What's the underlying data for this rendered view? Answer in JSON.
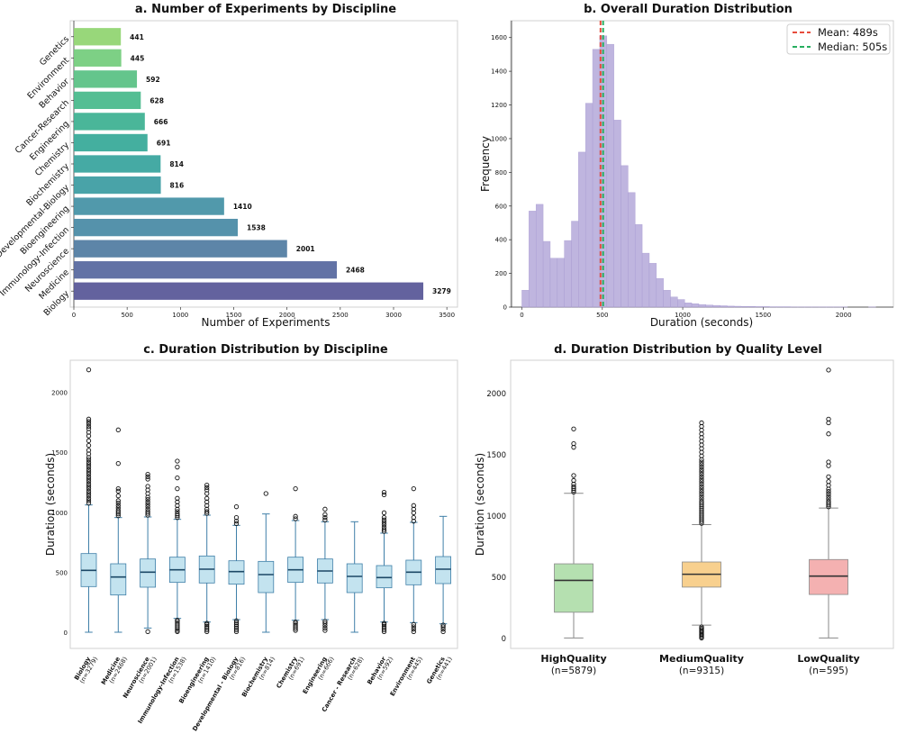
{
  "colors": {
    "hist": "#b9aedc",
    "hist_edge": "#a99cd2",
    "mean": "#e74c3c",
    "median": "#27ae60",
    "box_c": "#c3e3ef",
    "box_c_edge": "#3f7fa8",
    "box_c_median": "#1c4866",
    "high": "#b5e0b0",
    "medium": "#f8d08e",
    "low": "#f4b1b1",
    "box_d_edge": "#8a8a8a",
    "box_d_median": "#333333"
  },
  "chart_data": [
    {
      "id": "a",
      "type": "bar",
      "orientation": "horizontal",
      "title": "a. Number of Experiments by Discipline",
      "xlabel": "Number of Experiments",
      "ylabel": "",
      "xlim": [
        0,
        3600
      ],
      "xticks": [
        0,
        500,
        1000,
        1500,
        2000,
        2500,
        3000,
        3500
      ],
      "categories": [
        "Biology",
        "Medicine",
        "Neuroscience",
        "Immunology-Infection",
        "Bioengineering",
        "Developmental-Biology",
        "Biochemistry",
        "Chemistry",
        "Engineering",
        "Cancer-Research",
        "Behavior",
        "Environment",
        "Genetics"
      ],
      "values": [
        3279,
        2468,
        2001,
        1538,
        1410,
        816,
        814,
        691,
        666,
        628,
        592,
        445,
        441
      ],
      "colors": [
        "#5b5a99",
        "#5a6aa0",
        "#547ea3",
        "#4c8ca6",
        "#4894a6",
        "#3f9ea3",
        "#3ba59f",
        "#3aab9a",
        "#40b294",
        "#4bba8d",
        "#5cc286",
        "#76cd7e",
        "#92d573"
      ]
    },
    {
      "id": "b",
      "type": "histogram",
      "title": "b. Overall Duration Distribution",
      "xlabel": "Duration (seconds)",
      "ylabel": "Frequency",
      "xlim": [
        -70,
        2310
      ],
      "ylim": [
        0,
        1700
      ],
      "xticks": [
        0,
        500,
        1000,
        1500,
        2000
      ],
      "yticks": [
        0,
        200,
        400,
        600,
        800,
        1000,
        1200,
        1400,
        1600
      ],
      "bin_start": 0,
      "bin_width": 44,
      "counts": [
        100,
        570,
        610,
        390,
        290,
        290,
        395,
        510,
        920,
        1210,
        1530,
        1610,
        1560,
        1110,
        840,
        680,
        490,
        320,
        260,
        170,
        100,
        60,
        45,
        25,
        20,
        15,
        12,
        10,
        8,
        6,
        5,
        4,
        4,
        3,
        3,
        2,
        2,
        2,
        1,
        1,
        1,
        1,
        1,
        1,
        1,
        1,
        0,
        0,
        0,
        1
      ],
      "mean": 489,
      "median": 505,
      "legend": [
        "Mean: 489s",
        "Median: 505s"
      ],
      "legend_position": "top-right"
    },
    {
      "id": "c",
      "type": "box",
      "title": "c. Duration Distribution by Discipline",
      "xlabel": "",
      "ylabel": "Duration (seconds)",
      "ylim": [
        -130,
        2270
      ],
      "yticks": [
        0,
        500,
        1000,
        1500,
        2000
      ],
      "categories": [
        "Biology",
        "Medicine",
        "Neuroscience",
        "Immunology-Infection",
        "Bioengineering",
        "Developmental - Biology",
        "Biochemistry",
        "Chemistry",
        "Engineering",
        "Cancer - Research",
        "Behavior",
        "Environment",
        "Genetics"
      ],
      "n_labels": [
        "(n=3279)",
        "(n=2468)",
        "(n=2001)",
        "(n=1538)",
        "(n=1410)",
        "(n=816)",
        "(n=814)",
        "(n=691)",
        "(n=666)",
        "(n=628)",
        "(n=592)",
        "(n=445)",
        "(n=441)"
      ],
      "boxes": [
        {
          "whislo": 5,
          "q1": 385,
          "med": 520,
          "q3": 660,
          "whishi": 1065
        },
        {
          "whislo": 5,
          "q1": 315,
          "med": 465,
          "q3": 575,
          "whishi": 960
        },
        {
          "whislo": 40,
          "q1": 380,
          "med": 505,
          "q3": 615,
          "whishi": 965
        },
        {
          "whislo": 120,
          "q1": 420,
          "med": 525,
          "q3": 630,
          "whishi": 945
        },
        {
          "whislo": 90,
          "q1": 415,
          "med": 530,
          "q3": 640,
          "whishi": 980
        },
        {
          "whislo": 110,
          "q1": 405,
          "med": 510,
          "q3": 600,
          "whishi": 895
        },
        {
          "whislo": 5,
          "q1": 335,
          "med": 485,
          "q3": 595,
          "whishi": 990
        },
        {
          "whislo": 105,
          "q1": 420,
          "med": 525,
          "q3": 630,
          "whishi": 935
        },
        {
          "whislo": 110,
          "q1": 415,
          "med": 515,
          "q3": 615,
          "whishi": 925
        },
        {
          "whislo": 5,
          "q1": 335,
          "med": 470,
          "q3": 575,
          "whishi": 925
        },
        {
          "whislo": 90,
          "q1": 375,
          "med": 460,
          "q3": 560,
          "whishi": 830
        },
        {
          "whislo": 85,
          "q1": 400,
          "med": 505,
          "q3": 605,
          "whishi": 920
        },
        {
          "whislo": 75,
          "q1": 410,
          "med": 530,
          "q3": 635,
          "whishi": 970
        }
      ],
      "outliers": [
        [
          1080,
          1100,
          1120,
          1140,
          1160,
          1180,
          1200,
          1220,
          1240,
          1260,
          1280,
          1300,
          1320,
          1340,
          1360,
          1380,
          1400,
          1420,
          1440,
          1460,
          1490,
          1520,
          1560,
          1600,
          1640,
          1670,
          1700,
          1720,
          1740,
          1760,
          1780,
          2190
        ],
        [
          975,
          990,
          1005,
          1020,
          1040,
          1060,
          1080,
          1100,
          1140,
          1180,
          1200,
          1410,
          1690
        ],
        [
          10,
          980,
          995,
          1010,
          1030,
          1050,
          1070,
          1090,
          1110,
          1130,
          1160,
          1190,
          1220,
          1280,
          1300,
          1320
        ],
        [
          10,
          20,
          35,
          50,
          65,
          80,
          95,
          105,
          960,
          975,
          990,
          1010,
          1030,
          1060,
          1090,
          1120,
          1200,
          1290,
          1380,
          1430
        ],
        [
          10,
          25,
          40,
          55,
          70,
          80,
          995,
          1010,
          1030,
          1060,
          1090,
          1120,
          1160,
          1190,
          1210,
          1230
        ],
        [
          10,
          25,
          40,
          55,
          70,
          85,
          100,
          910,
          930,
          960,
          1050
        ],
        [
          1160
        ],
        [
          20,
          35,
          50,
          65,
          80,
          90,
          950,
          970,
          1200
        ],
        [
          20,
          40,
          60,
          80,
          95,
          940,
          960,
          985,
          1030
        ],
        [],
        [
          10,
          25,
          40,
          55,
          70,
          80,
          845,
          860,
          880,
          900,
          920,
          940,
          960,
          1000,
          1150,
          1170
        ],
        [
          10,
          30,
          50,
          70,
          930,
          960,
          1000,
          1030,
          1060,
          1200
        ],
        [
          10,
          30,
          50,
          65
        ]
      ]
    },
    {
      "id": "d",
      "type": "box",
      "title": "d. Duration Distribution by Quality Level",
      "xlabel": "",
      "ylabel": "Duration (seconds)",
      "ylim": [
        -80,
        2270
      ],
      "yticks": [
        0,
        500,
        1000,
        1500,
        2000
      ],
      "categories": [
        "HighQuality",
        "MediumQuality",
        "LowQuality"
      ],
      "n_labels": [
        "(n=5879)",
        "(n=9315)",
        "(n=595)"
      ],
      "boxes": [
        {
          "whislo": 5,
          "q1": 215,
          "med": 475,
          "q3": 610,
          "whishi": 1185
        },
        {
          "whislo": 110,
          "q1": 420,
          "med": 525,
          "q3": 625,
          "whishi": 930
        },
        {
          "whislo": 5,
          "q1": 360,
          "med": 510,
          "q3": 645,
          "whishi": 1065
        }
      ],
      "outliers": [
        [
          1195,
          1210,
          1225,
          1240,
          1260,
          1290,
          1330,
          1560,
          1590,
          1710
        ],
        [
          5,
          15,
          25,
          35,
          45,
          55,
          65,
          75,
          85,
          95,
          940,
          955,
          970,
          985,
          1000,
          1015,
          1030,
          1045,
          1060,
          1075,
          1090,
          1105,
          1120,
          1140,
          1160,
          1180,
          1200,
          1220,
          1240,
          1260,
          1280,
          1300,
          1320,
          1340,
          1360,
          1380,
          1400,
          1420,
          1440,
          1460,
          1490,
          1520,
          1550,
          1580,
          1610,
          1640,
          1670,
          1700,
          1730,
          1760
        ],
        [
          1075,
          1090,
          1105,
          1120,
          1140,
          1160,
          1180,
          1200,
          1220,
          1250,
          1280,
          1320,
          1410,
          1440,
          1670,
          1760,
          1790,
          2190
        ]
      ]
    }
  ]
}
